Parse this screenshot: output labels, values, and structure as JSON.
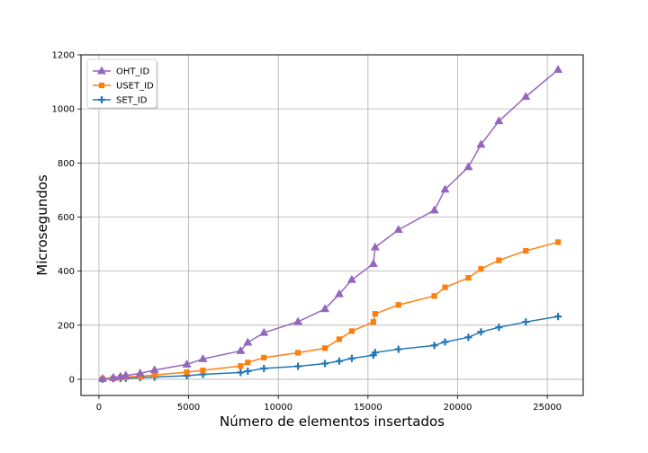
{
  "chart_data": {
    "type": "line",
    "title": "",
    "xlabel": "Número de elementos insertados",
    "ylabel": "Microsegundos",
    "xlim": [
      -1000,
      27000
    ],
    "ylim": [
      -60,
      1200
    ],
    "xticks": [
      0,
      5000,
      10000,
      15000,
      20000,
      25000
    ],
    "yticks": [
      0,
      200,
      400,
      600,
      800,
      1000,
      1200
    ],
    "grid": true,
    "legend_position": "top-left",
    "series": [
      {
        "name": "OHT_ID",
        "color": "#9467bd",
        "marker": "triangle",
        "x": [
          200,
          800,
          1200,
          1500,
          2300,
          3100,
          4900,
          5800,
          7900,
          8300,
          9200,
          11100,
          12600,
          13400,
          14100,
          15300,
          15400,
          16700,
          18700,
          19300,
          20600,
          21300,
          22300,
          23800,
          25600
        ],
        "y": [
          2,
          6,
          10,
          14,
          22,
          34,
          55,
          75,
          105,
          136,
          172,
          213,
          260,
          315,
          368,
          427,
          488,
          553,
          625,
          702,
          785,
          868,
          955,
          1045,
          1145
        ]
      },
      {
        "name": "USET_ID",
        "color": "#ff7f0e",
        "marker": "square",
        "x": [
          200,
          800,
          1200,
          1500,
          2300,
          3100,
          4900,
          5800,
          7900,
          8300,
          9200,
          11100,
          12600,
          13400,
          14100,
          15300,
          15400,
          16700,
          18700,
          19300,
          20600,
          21300,
          22300,
          23800,
          25600
        ],
        "y": [
          1,
          3,
          6,
          8,
          11,
          16,
          26,
          33,
          49,
          62,
          80,
          98,
          115,
          148,
          178,
          212,
          242,
          275,
          308,
          340,
          375,
          408,
          440,
          475,
          507
        ]
      },
      {
        "name": "SET_ID",
        "color": "#1f77b4",
        "marker": "plus",
        "x": [
          200,
          800,
          1200,
          1500,
          2300,
          3100,
          4900,
          5800,
          7900,
          8300,
          9200,
          11100,
          12600,
          13400,
          14100,
          15300,
          15400,
          16700,
          18700,
          19300,
          20600,
          21300,
          22300,
          23800,
          25600
        ],
        "y": [
          0,
          2,
          3,
          4,
          6,
          8,
          13,
          18,
          25,
          30,
          40,
          48,
          58,
          67,
          77,
          89,
          99,
          111,
          125,
          138,
          155,
          175,
          192,
          212,
          232
        ]
      }
    ]
  }
}
